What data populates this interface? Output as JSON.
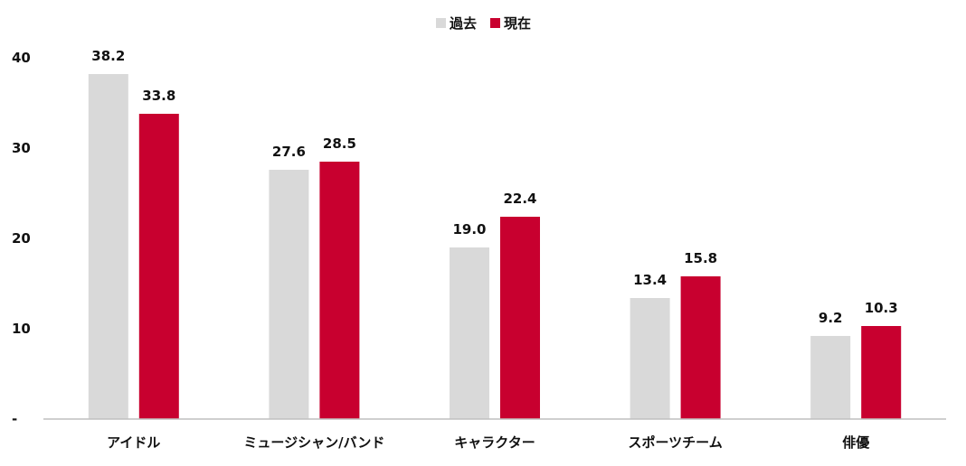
{
  "chart_data": {
    "type": "bar",
    "categories": [
      "アイドル",
      "ミュージシャン/バンド",
      "キャラクター",
      "スポーツチーム",
      "俳優"
    ],
    "series": [
      {
        "name": "過去",
        "color": "#d9d9d9",
        "values": [
          38.2,
          27.6,
          19.0,
          13.4,
          9.2
        ]
      },
      {
        "name": "現在",
        "color": "#c8002f",
        "values": [
          33.8,
          28.5,
          22.4,
          15.8,
          10.3
        ]
      }
    ],
    "value_labels": [
      [
        "38.2",
        "27.6",
        "19.0",
        "13.4",
        "9.2"
      ],
      [
        "33.8",
        "28.5",
        "22.4",
        "15.8",
        "10.3"
      ]
    ],
    "yticks": [
      0,
      10,
      20,
      30,
      40
    ],
    "ytick_labels": [
      "-",
      "10",
      "20",
      "30",
      "40"
    ],
    "ylim": [
      0,
      40
    ],
    "legend_position": "top-center",
    "grid": false
  }
}
